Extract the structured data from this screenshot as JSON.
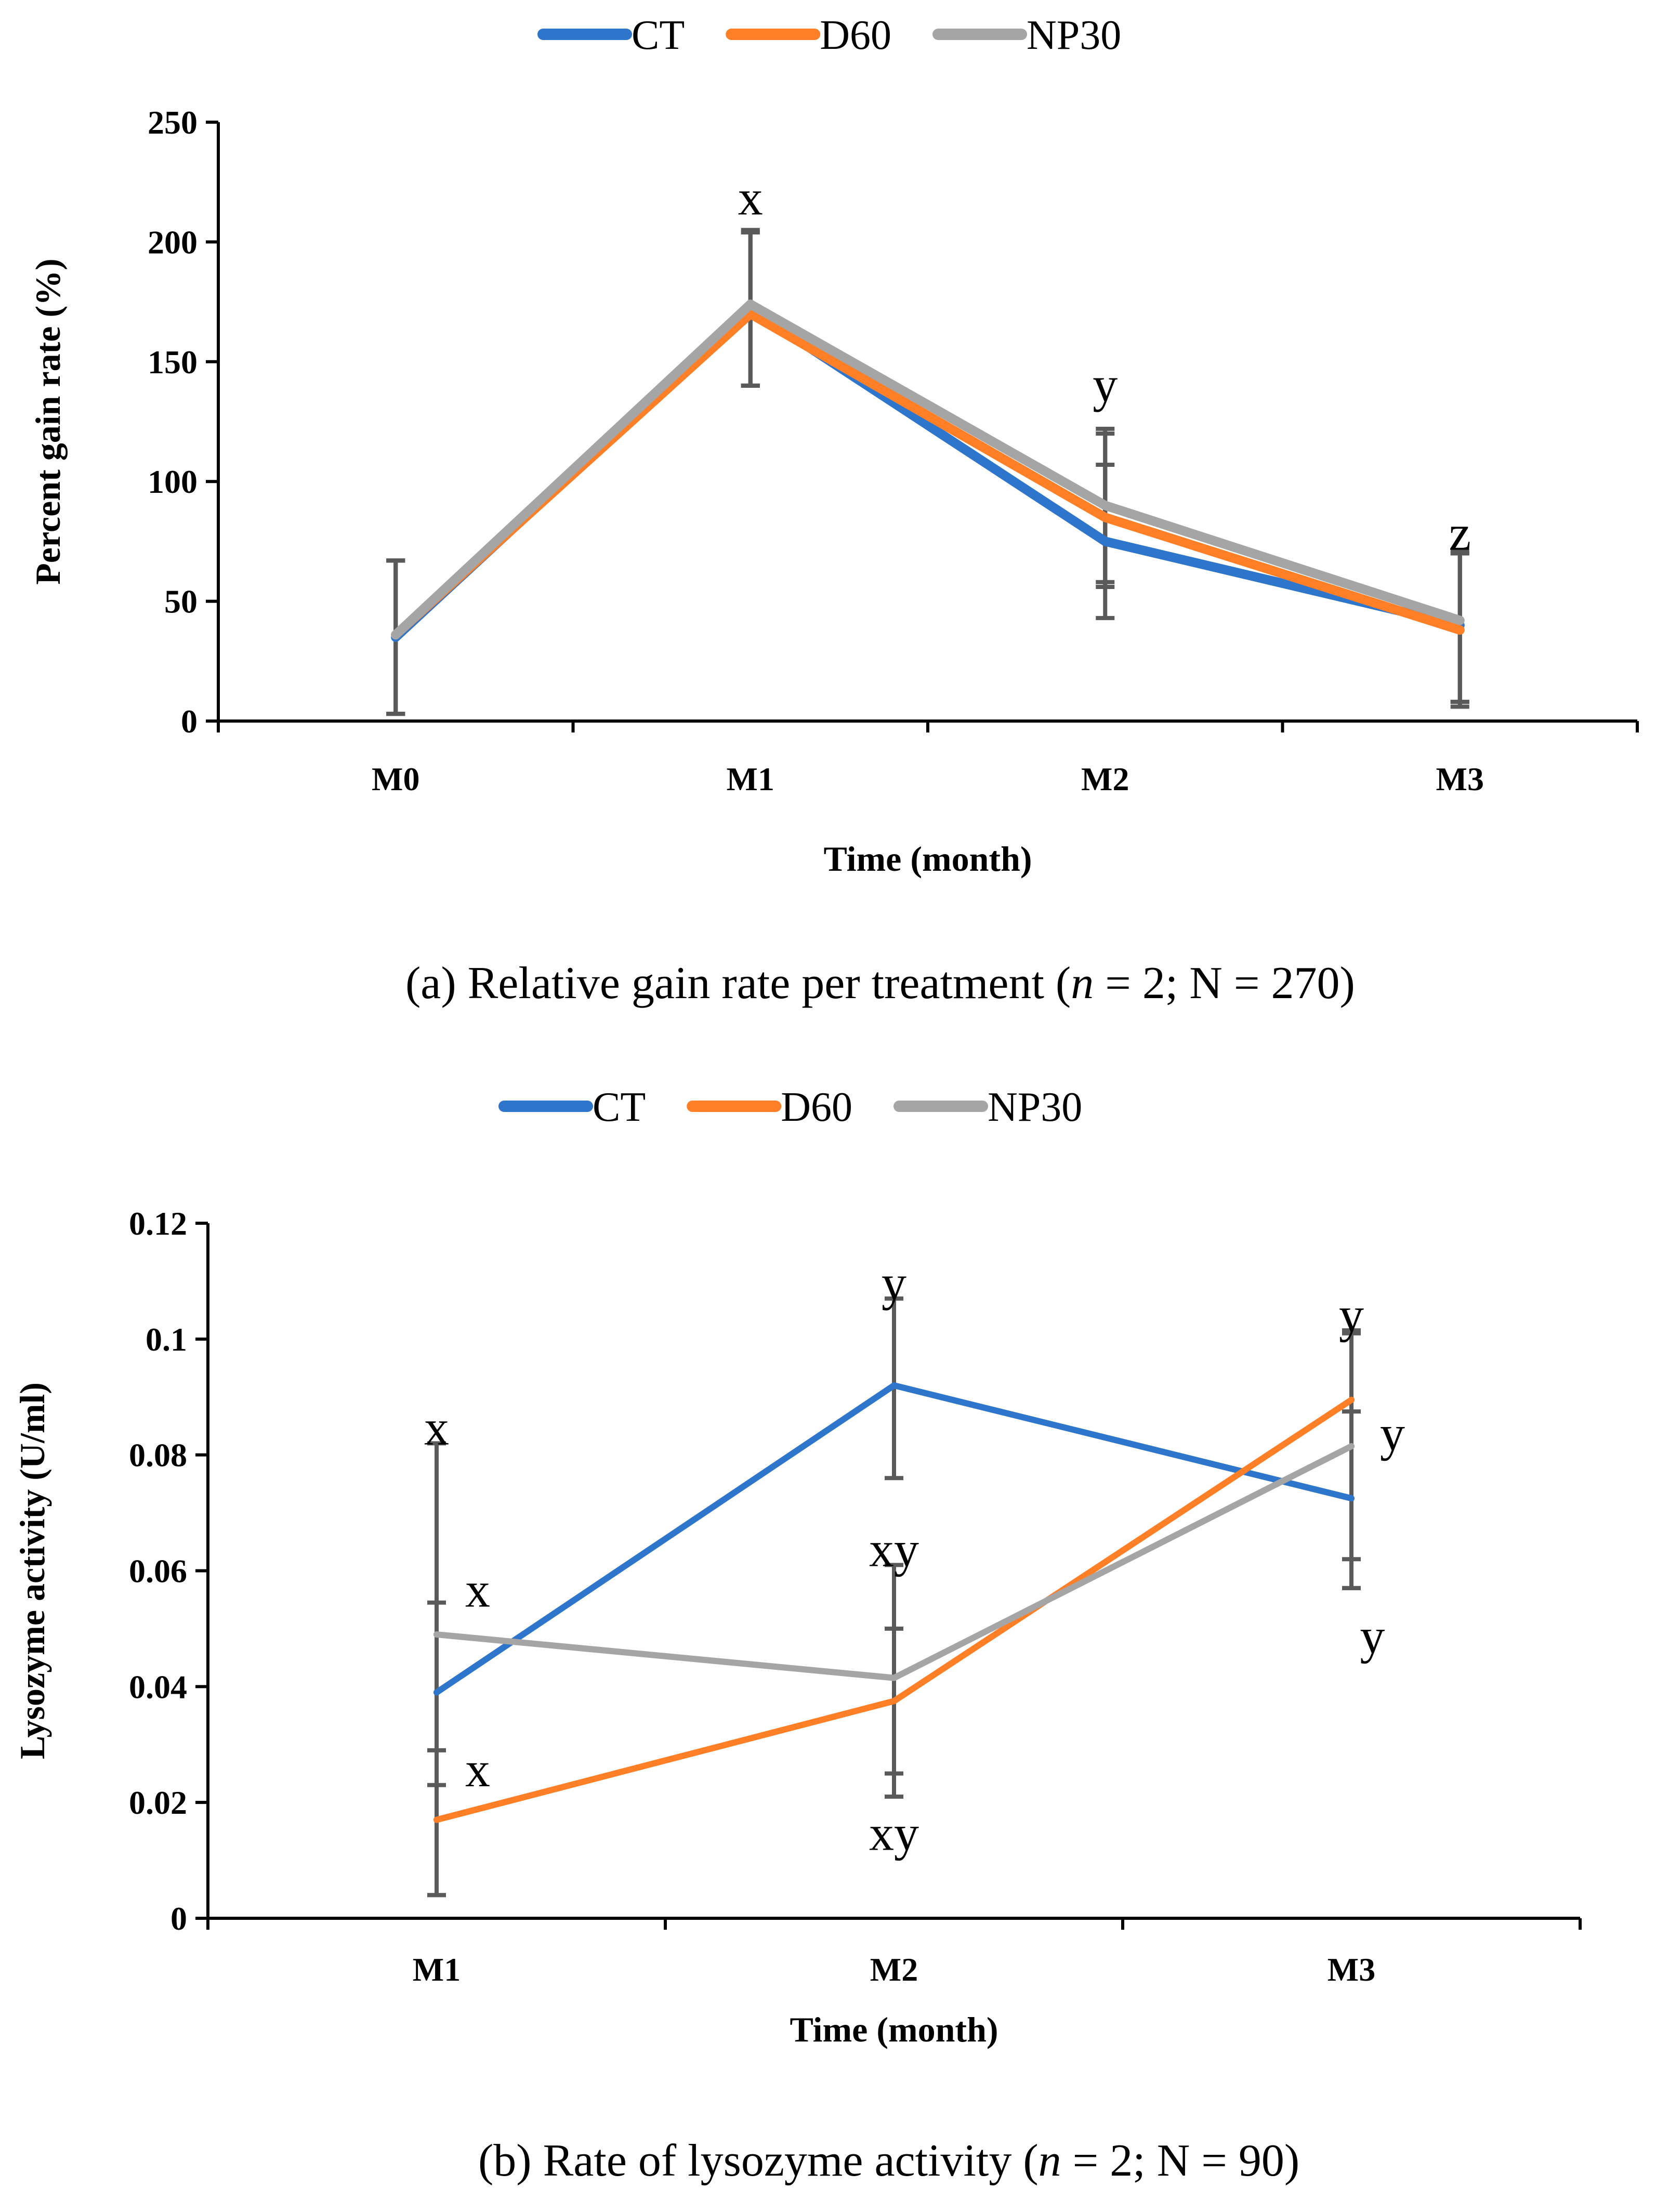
{
  "colors": {
    "CT": "#2E75CC",
    "D60": "#FF7F27",
    "NP30": "#A5A5A5"
  },
  "chart_data": [
    {
      "type": "line",
      "title": "",
      "caption": {
        "prefix": "(a) Relative gain rate per treatment (",
        "n_symbol": "n",
        "middle": " = 2; N = 270)"
      },
      "xlabel": "Time (month)",
      "ylabel": "Percent gain rate (%)",
      "ylim": [
        0,
        250
      ],
      "yticks": [
        "0",
        "50",
        "100",
        "150",
        "200",
        "250"
      ],
      "categories": [
        "M0",
        "M1",
        "M2",
        "M3"
      ],
      "legend": [
        "CT",
        "D60",
        "NP30"
      ],
      "legend_position": "top",
      "series": [
        {
          "name": "CT",
          "values": [
            35,
            172,
            75,
            40
          ],
          "err_low": [
            3,
            140,
            43,
            8
          ],
          "err_high": [
            67,
            204,
            107,
            70
          ]
        },
        {
          "name": "D60",
          "values": [
            36,
            170,
            85,
            38
          ],
          "err_low": [
            3,
            140,
            56,
            6
          ],
          "err_high": [
            67,
            204,
            120,
            70
          ]
        },
        {
          "name": "NP30",
          "values": [
            36,
            174,
            90,
            42
          ],
          "err_low": [
            3,
            140,
            58,
            8
          ],
          "err_high": [
            67,
            205,
            122,
            71
          ]
        }
      ],
      "annotations": [
        {
          "text": "x",
          "category": "M1",
          "y": 218
        },
        {
          "text": "y",
          "category": "M2",
          "y": 140
        },
        {
          "text": "z",
          "category": "M3",
          "y": 78
        }
      ]
    },
    {
      "type": "line",
      "title": "",
      "caption": {
        "prefix": "(b) Rate of lysozyme activity (",
        "n_symbol": "n",
        "middle": " = 2; N = 90)"
      },
      "xlabel": "Time (month)",
      "ylabel": "Lysozyme activity (U/ml)",
      "ylim": [
        0,
        0.12
      ],
      "yticks": [
        "0",
        "0.02",
        "0.04",
        "0.06",
        "0.08",
        "0.1",
        "0.12"
      ],
      "categories": [
        "M1",
        "M2",
        "M3"
      ],
      "legend": [
        "CT",
        "D60",
        "NP30"
      ],
      "legend_position": "top",
      "series": [
        {
          "name": "CT",
          "values": [
            0.039,
            0.092,
            0.0725
          ],
          "err_low": [
            0.004,
            0.076,
            0.062
          ],
          "err_high": [
            0.082,
            0.107,
            0.0875
          ]
        },
        {
          "name": "D60",
          "values": [
            0.017,
            0.0375,
            0.0895
          ],
          "err_low": [
            0.004,
            0.025,
            0.057
          ],
          "err_high": [
            0.029,
            0.05,
            0.1015
          ]
        },
        {
          "name": "NP30",
          "values": [
            0.049,
            0.0415,
            0.0815
          ],
          "err_low": [
            0.023,
            0.021,
            0.057
          ],
          "err_high": [
            0.0545,
            0.061,
            0.101
          ]
        }
      ],
      "annotations": [
        {
          "text": "x",
          "category": "M1",
          "y": 0.0845
        },
        {
          "text": "x",
          "category": "M1",
          "y": 0.0565,
          "dx": 1
        },
        {
          "text": "x",
          "category": "M1",
          "y": 0.0255,
          "dx": 1
        },
        {
          "text": "y",
          "category": "M2",
          "y": 0.1095
        },
        {
          "text": "xy",
          "category": "M2",
          "y": 0.0635
        },
        {
          "text": "xy",
          "category": "M2",
          "y": 0.0145
        },
        {
          "text": "y",
          "category": "M3",
          "y": 0.104
        },
        {
          "text": "y",
          "category": "M3",
          "y": 0.0835,
          "dx": 1
        },
        {
          "text": "y",
          "category": "M3",
          "y": 0.0485,
          "dx": 0.3
        }
      ]
    }
  ]
}
